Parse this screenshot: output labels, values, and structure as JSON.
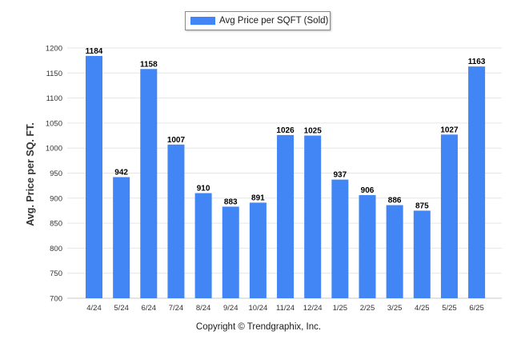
{
  "legend": {
    "label": "Avg Price per SQFT (Sold)",
    "color": "#4285f4"
  },
  "footer": {
    "copyright": "Copyright © Trendgraphix, Inc."
  },
  "chart_data": {
    "type": "bar",
    "ylabel": "Avg. Price per SQ. FT.",
    "ylim": [
      700,
      1200
    ],
    "yticks": [
      700,
      750,
      800,
      850,
      900,
      950,
      1000,
      1050,
      1100,
      1150,
      1200
    ],
    "grid": true,
    "legend_position": "top-center",
    "categories": [
      "4/24",
      "5/24",
      "6/24",
      "7/24",
      "8/24",
      "9/24",
      "10/24",
      "11/24",
      "12/24",
      "1/25",
      "2/25",
      "3/25",
      "4/25",
      "5/25",
      "6/25"
    ],
    "series": [
      {
        "name": "Avg Price per SQFT (Sold)",
        "color": "#4285f4",
        "values": [
          1184,
          942,
          1158,
          1007,
          910,
          883,
          891,
          1026,
          1025,
          937,
          906,
          886,
          875,
          1027,
          1163
        ]
      }
    ]
  }
}
